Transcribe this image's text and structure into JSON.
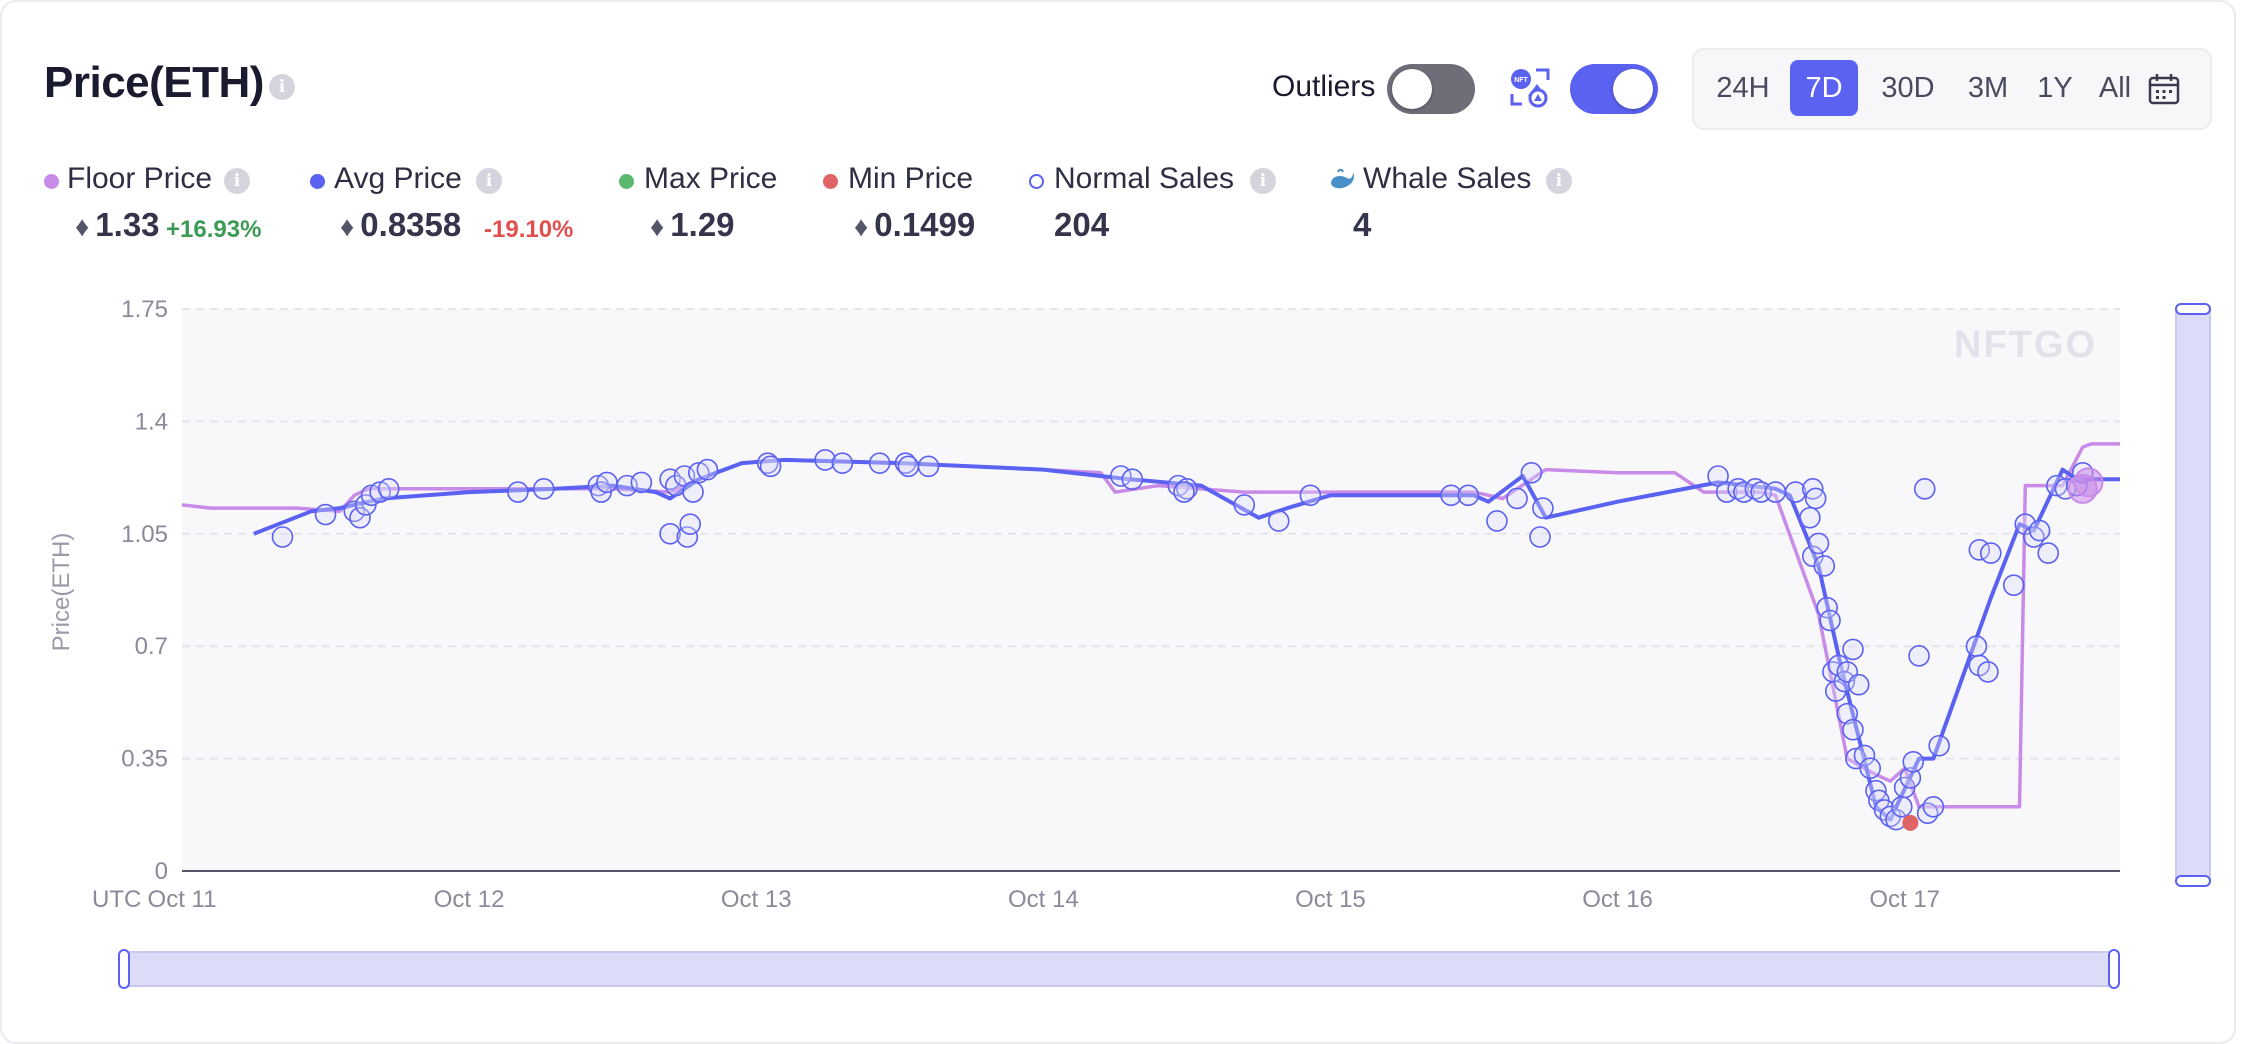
{
  "header": {
    "title": "Price(ETH)",
    "outliers_label": "Outliers",
    "outliers_on": false,
    "nft_toggle_on": true,
    "time_ranges": [
      "24H",
      "7D",
      "30D",
      "3M",
      "1Y",
      "All"
    ],
    "active_range": "7D",
    "icons": {
      "title_info": "info-icon",
      "nft_toggle": "nft-swap-icon",
      "calendar": "calendar-icon",
      "eth": "ethereum-icon",
      "whale": "whale-icon"
    }
  },
  "legend": {
    "floor": {
      "label": "Floor Price",
      "value": "1.33",
      "change": "+16.93%",
      "color": "#c98be8"
    },
    "avg": {
      "label": "Avg Price",
      "value": "0.8358",
      "change": "-19.10%",
      "color": "#5b61f0"
    },
    "max": {
      "label": "Max Price",
      "value": "1.29",
      "color": "#5cb86f"
    },
    "min": {
      "label": "Min Price",
      "value": "0.1499",
      "color": "#e06464"
    },
    "normal": {
      "label": "Normal Sales",
      "value": "204",
      "color": "#5b61f0"
    },
    "whale": {
      "label": "Whale Sales",
      "value": "4"
    }
  },
  "colors": {
    "accent": "#5b61f0",
    "floor": "#c98be8",
    "grid": "#e4e4ec",
    "plot_bg": "#f8f8fb",
    "slider": "#dcdcf8"
  },
  "chart_data": {
    "type": "line",
    "watermark": "NFTGO",
    "ylabel": "Price(ETH)",
    "ylim": [
      0,
      1.75
    ],
    "yticks": [
      "1.75",
      "1.4",
      "1.05",
      "0.7",
      "0.35",
      "0"
    ],
    "xlim": [
      11.0,
      17.75
    ],
    "xtick_prefix": "UTC",
    "xticks": [
      {
        "v": 11,
        "label": "Oct 11"
      },
      {
        "v": 12,
        "label": "Oct 12"
      },
      {
        "v": 13,
        "label": "Oct 13"
      },
      {
        "v": 14,
        "label": "Oct 14"
      },
      {
        "v": 15,
        "label": "Oct 15"
      },
      {
        "v": 16,
        "label": "Oct 16"
      },
      {
        "v": 17,
        "label": "Oct 17"
      }
    ],
    "series": [
      {
        "name": "Floor Price",
        "color": "#c98be8",
        "points": [
          [
            11.0,
            1.14
          ],
          [
            11.1,
            1.13
          ],
          [
            11.4,
            1.13
          ],
          [
            11.55,
            1.12
          ],
          [
            11.6,
            1.17
          ],
          [
            11.65,
            1.19
          ],
          [
            12.0,
            1.19
          ],
          [
            12.3,
            1.19
          ],
          [
            12.5,
            1.19
          ],
          [
            12.7,
            1.18
          ],
          [
            12.8,
            1.22
          ],
          [
            12.95,
            1.27
          ],
          [
            13.1,
            1.28
          ],
          [
            13.5,
            1.27
          ],
          [
            14.0,
            1.25
          ],
          [
            14.2,
            1.24
          ],
          [
            14.25,
            1.18
          ],
          [
            14.4,
            1.2
          ],
          [
            14.7,
            1.18
          ],
          [
            15.0,
            1.18
          ],
          [
            15.5,
            1.18
          ],
          [
            15.6,
            1.16
          ],
          [
            15.75,
            1.25
          ],
          [
            16.0,
            1.24
          ],
          [
            16.2,
            1.24
          ],
          [
            16.3,
            1.18
          ],
          [
            16.5,
            1.18
          ],
          [
            16.55,
            1.17
          ],
          [
            16.7,
            0.8
          ],
          [
            16.8,
            0.35
          ],
          [
            16.9,
            0.3
          ],
          [
            16.95,
            0.28
          ],
          [
            17.0,
            0.32
          ],
          [
            17.05,
            0.2
          ],
          [
            17.1,
            0.2
          ],
          [
            17.2,
            0.2
          ],
          [
            17.35,
            0.2
          ],
          [
            17.4,
            0.2
          ],
          [
            17.42,
            1.2
          ],
          [
            17.55,
            1.2
          ],
          [
            17.62,
            1.32
          ],
          [
            17.65,
            1.33
          ],
          [
            17.75,
            1.33
          ]
        ]
      },
      {
        "name": "Avg Price",
        "color": "#5b61f0",
        "points": [
          [
            11.25,
            1.05
          ],
          [
            11.45,
            1.12
          ],
          [
            11.55,
            1.13
          ],
          [
            11.7,
            1.16
          ],
          [
            12.0,
            1.18
          ],
          [
            12.3,
            1.19
          ],
          [
            12.5,
            1.2
          ],
          [
            12.65,
            1.18
          ],
          [
            12.7,
            1.16
          ],
          [
            12.8,
            1.22
          ],
          [
            12.95,
            1.27
          ],
          [
            13.1,
            1.28
          ],
          [
            13.5,
            1.27
          ],
          [
            14.0,
            1.25
          ],
          [
            14.3,
            1.22
          ],
          [
            14.55,
            1.2
          ],
          [
            14.75,
            1.1
          ],
          [
            14.85,
            1.13
          ],
          [
            15.0,
            1.17
          ],
          [
            15.5,
            1.17
          ],
          [
            15.55,
            1.15
          ],
          [
            15.67,
            1.23
          ],
          [
            15.75,
            1.1
          ],
          [
            16.0,
            1.15
          ],
          [
            16.35,
            1.21
          ],
          [
            16.55,
            1.19
          ],
          [
            16.6,
            1.17
          ],
          [
            16.7,
            0.95
          ],
          [
            16.78,
            0.63
          ],
          [
            16.85,
            0.38
          ],
          [
            16.9,
            0.2
          ],
          [
            16.95,
            0.16
          ],
          [
            17.05,
            0.35
          ],
          [
            17.1,
            0.35
          ],
          [
            17.2,
            0.6
          ],
          [
            17.3,
            0.85
          ],
          [
            17.4,
            1.08
          ],
          [
            17.45,
            1.06
          ],
          [
            17.55,
            1.25
          ],
          [
            17.6,
            1.22
          ],
          [
            17.65,
            1.22
          ],
          [
            17.75,
            1.22
          ]
        ]
      }
    ],
    "scatter": {
      "name": "Normal Sales",
      "points": [
        [
          11.35,
          1.04
        ],
        [
          11.5,
          1.11
        ],
        [
          11.6,
          1.12
        ],
        [
          11.62,
          1.1
        ],
        [
          11.64,
          1.14
        ],
        [
          11.66,
          1.17
        ],
        [
          11.69,
          1.18
        ],
        [
          11.72,
          1.19
        ],
        [
          12.17,
          1.18
        ],
        [
          12.26,
          1.19
        ],
        [
          12.45,
          1.2
        ],
        [
          12.46,
          1.18
        ],
        [
          12.48,
          1.21
        ],
        [
          12.55,
          1.2
        ],
        [
          12.6,
          1.21
        ],
        [
          12.7,
          1.05
        ],
        [
          12.7,
          1.22
        ],
        [
          12.72,
          1.2
        ],
        [
          12.75,
          1.23
        ],
        [
          12.76,
          1.04
        ],
        [
          12.77,
          1.08
        ],
        [
          12.78,
          1.18
        ],
        [
          12.8,
          1.24
        ],
        [
          12.83,
          1.25
        ],
        [
          13.04,
          1.27
        ],
        [
          13.05,
          1.26
        ],
        [
          13.24,
          1.28
        ],
        [
          13.3,
          1.27
        ],
        [
          13.43,
          1.27
        ],
        [
          13.52,
          1.27
        ],
        [
          13.53,
          1.26
        ],
        [
          13.6,
          1.26
        ],
        [
          14.27,
          1.23
        ],
        [
          14.31,
          1.22
        ],
        [
          14.47,
          1.2
        ],
        [
          14.5,
          1.19
        ],
        [
          14.49,
          1.18
        ],
        [
          14.7,
          1.14
        ],
        [
          14.82,
          1.09
        ],
        [
          14.93,
          1.17
        ],
        [
          15.42,
          1.17
        ],
        [
          15.48,
          1.17
        ],
        [
          15.58,
          1.09
        ],
        [
          15.65,
          1.16
        ],
        [
          15.7,
          1.24
        ],
        [
          15.74,
          1.13
        ],
        [
          15.73,
          1.04
        ],
        [
          16.35,
          1.23
        ],
        [
          16.38,
          1.18
        ],
        [
          16.42,
          1.19
        ],
        [
          16.44,
          1.18
        ],
        [
          16.48,
          1.19
        ],
        [
          16.5,
          1.18
        ],
        [
          16.55,
          1.18
        ],
        [
          16.62,
          1.18
        ],
        [
          16.68,
          1.19
        ],
        [
          16.69,
          1.16
        ],
        [
          16.67,
          1.1
        ],
        [
          16.68,
          0.98
        ],
        [
          16.7,
          1.02
        ],
        [
          16.72,
          0.95
        ],
        [
          16.73,
          0.82
        ],
        [
          16.74,
          0.78
        ],
        [
          16.75,
          0.62
        ],
        [
          16.76,
          0.56
        ],
        [
          16.77,
          0.64
        ],
        [
          16.79,
          0.59
        ],
        [
          16.8,
          0.62
        ],
        [
          16.82,
          0.69
        ],
        [
          16.84,
          0.58
        ],
        [
          16.8,
          0.49
        ],
        [
          16.82,
          0.44
        ],
        [
          16.83,
          0.35
        ],
        [
          16.86,
          0.36
        ],
        [
          16.88,
          0.32
        ],
        [
          16.9,
          0.25
        ],
        [
          16.91,
          0.22
        ],
        [
          16.93,
          0.19
        ],
        [
          16.95,
          0.17
        ],
        [
          16.97,
          0.16
        ],
        [
          16.99,
          0.2
        ],
        [
          17.0,
          0.26
        ],
        [
          17.02,
          0.29
        ],
        [
          17.03,
          0.34
        ],
        [
          17.05,
          0.67
        ],
        [
          17.07,
          1.19
        ],
        [
          17.12,
          0.39
        ],
        [
          17.08,
          0.18
        ],
        [
          17.1,
          0.2
        ],
        [
          17.26,
          1.0
        ],
        [
          17.3,
          0.99
        ],
        [
          17.38,
          0.89
        ],
        [
          17.42,
          1.08
        ],
        [
          17.45,
          1.04
        ],
        [
          17.47,
          1.06
        ],
        [
          17.5,
          0.99
        ],
        [
          17.53,
          1.2
        ],
        [
          17.56,
          1.19
        ],
        [
          17.6,
          1.2
        ],
        [
          17.62,
          1.24
        ],
        [
          17.25,
          0.7
        ],
        [
          17.26,
          0.64
        ],
        [
          17.29,
          0.62
        ]
      ]
    },
    "whale_points": [
      [
        17.62,
        1.19
      ],
      [
        17.64,
        1.21
      ]
    ],
    "min_point": [
      17.02,
      0.15
    ],
    "grid": true,
    "range_slider": true
  }
}
